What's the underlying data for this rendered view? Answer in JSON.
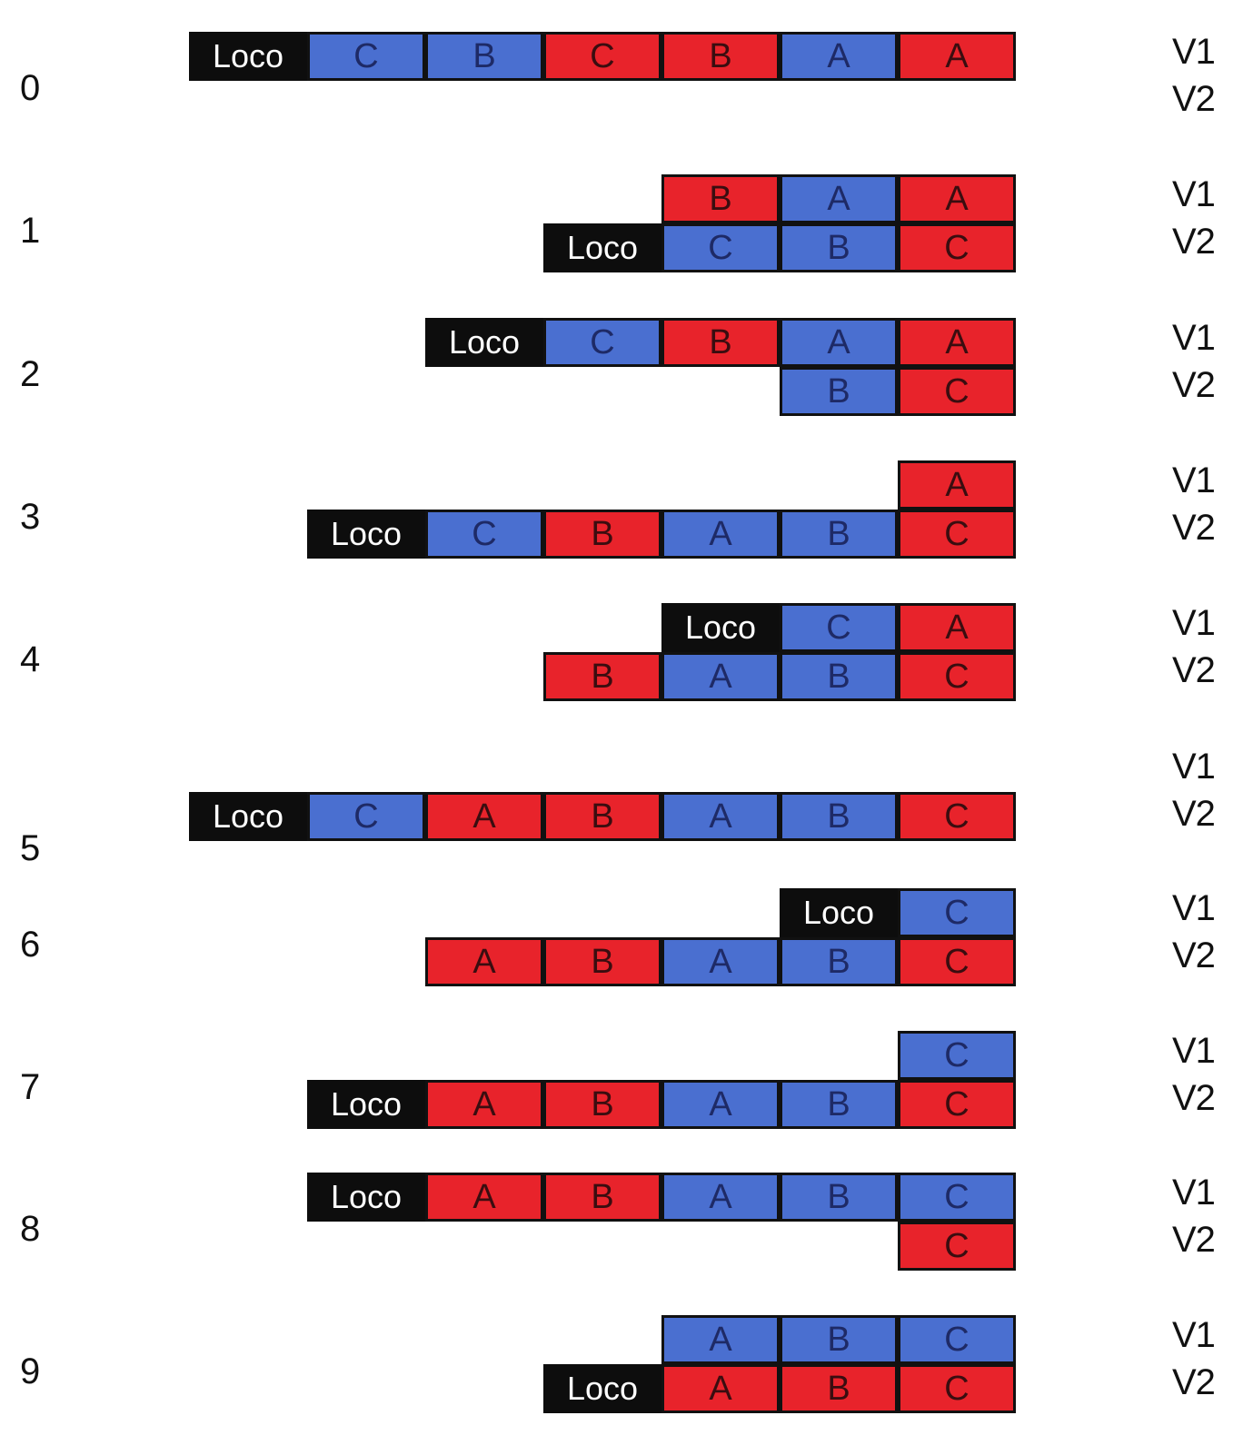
{
  "colors": {
    "blue": "#4a6fd0",
    "red": "#e8232b",
    "loco": "#0d0d0d"
  },
  "steps": [
    {
      "step": "0",
      "v1": "V1",
      "v2": "V2",
      "v1_cars": [
        [
          "Loco",
          "black"
        ],
        [
          "C",
          "blue"
        ],
        [
          "B",
          "blue"
        ],
        [
          "C",
          "red"
        ],
        [
          "B",
          "red"
        ],
        [
          "A",
          "blue"
        ],
        [
          "A",
          "red"
        ]
      ],
      "v2_cars": []
    },
    {
      "step": "1",
      "v1": "V1",
      "v2": "V2",
      "v1_cars": [
        [
          "B",
          "red"
        ],
        [
          "A",
          "blue"
        ],
        [
          "A",
          "red"
        ]
      ],
      "v2_cars": [
        [
          "Loco",
          "black"
        ],
        [
          "C",
          "blue"
        ],
        [
          "B",
          "blue"
        ],
        [
          "C",
          "red"
        ]
      ]
    },
    {
      "step": "2",
      "v1": "V1",
      "v2": "V2",
      "v1_cars": [
        [
          "Loco",
          "black"
        ],
        [
          "C",
          "blue"
        ],
        [
          "B",
          "red"
        ],
        [
          "A",
          "blue"
        ],
        [
          "A",
          "red"
        ]
      ],
      "v2_cars": [
        [
          "B",
          "blue"
        ],
        [
          "C",
          "red"
        ]
      ]
    },
    {
      "step": "3",
      "v1": "V1",
      "v2": "V2",
      "v1_cars": [
        [
          "A",
          "red"
        ]
      ],
      "v2_cars": [
        [
          "Loco",
          "black"
        ],
        [
          "C",
          "blue"
        ],
        [
          "B",
          "red"
        ],
        [
          "A",
          "blue"
        ],
        [
          "B",
          "blue"
        ],
        [
          "C",
          "red"
        ]
      ]
    },
    {
      "step": "4",
      "v1": "V1",
      "v2": "V2",
      "v1_cars": [
        [
          "Loco",
          "black"
        ],
        [
          "C",
          "blue"
        ],
        [
          "A",
          "red"
        ]
      ],
      "v2_cars": [
        [
          "B",
          "red"
        ],
        [
          "A",
          "blue"
        ],
        [
          "B",
          "blue"
        ],
        [
          "C",
          "red"
        ]
      ]
    },
    {
      "step": "5",
      "v1": "V1",
      "v2": "V2",
      "v1_cars": [],
      "v2_cars": [
        [
          "Loco",
          "black"
        ],
        [
          "C",
          "blue"
        ],
        [
          "A",
          "red"
        ],
        [
          "B",
          "red"
        ],
        [
          "A",
          "blue"
        ],
        [
          "B",
          "blue"
        ],
        [
          "C",
          "red"
        ]
      ]
    },
    {
      "step": "6",
      "v1": "V1",
      "v2": "V2",
      "v1_cars": [
        [
          "Loco",
          "black"
        ],
        [
          "C",
          "blue"
        ]
      ],
      "v2_cars": [
        [
          "A",
          "red"
        ],
        [
          "B",
          "red"
        ],
        [
          "A",
          "blue"
        ],
        [
          "B",
          "blue"
        ],
        [
          "C",
          "red"
        ]
      ]
    },
    {
      "step": "7",
      "v1": "V1",
      "v2": "V2",
      "v1_cars": [
        [
          "C",
          "blue"
        ]
      ],
      "v2_cars": [
        [
          "Loco",
          "black"
        ],
        [
          "A",
          "red"
        ],
        [
          "B",
          "red"
        ],
        [
          "A",
          "blue"
        ],
        [
          "B",
          "blue"
        ],
        [
          "C",
          "red"
        ]
      ]
    },
    {
      "step": "8",
      "v1": "V1",
      "v2": "V2",
      "v1_cars": [
        [
          "Loco",
          "black"
        ],
        [
          "A",
          "red"
        ],
        [
          "B",
          "red"
        ],
        [
          "A",
          "blue"
        ],
        [
          "B",
          "blue"
        ],
        [
          "C",
          "blue"
        ]
      ],
      "v2_cars": [
        [
          "C",
          "red"
        ]
      ]
    },
    {
      "step": "9",
      "v1": "V1",
      "v2": "V2",
      "v1_cars": [
        [
          "A",
          "blue"
        ],
        [
          "B",
          "blue"
        ],
        [
          "C",
          "blue"
        ]
      ],
      "v2_cars": [
        [
          "Loco",
          "black"
        ],
        [
          "A",
          "red"
        ],
        [
          "B",
          "red"
        ],
        [
          "C",
          "red"
        ]
      ]
    }
  ]
}
